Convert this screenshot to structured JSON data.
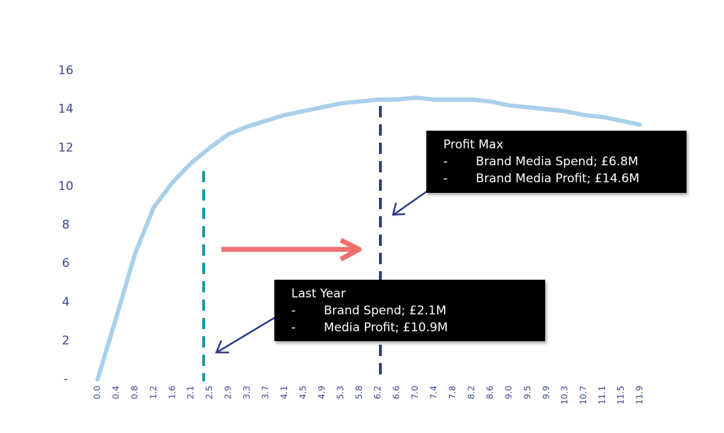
{
  "chart_data": {
    "type": "line",
    "categories": [
      "0.0",
      "0.4",
      "0.8",
      "1.2",
      "1.6",
      "2.1",
      "2.5",
      "2.9",
      "3.3",
      "3.7",
      "4.1",
      "4.5",
      "4.9",
      "5.3",
      "5.8",
      "6.2",
      "6.6",
      "7.0",
      "7.4",
      "7.8",
      "8.2",
      "8.6",
      "9.0",
      "9.5",
      "9.9",
      "10.3",
      "10.7",
      "11.1",
      "11.5",
      "11.9"
    ],
    "values": [
      0,
      3.2,
      6.5,
      8.9,
      10.2,
      11.2,
      12.0,
      12.7,
      13.1,
      13.4,
      13.7,
      13.9,
      14.1,
      14.3,
      14.4,
      14.5,
      14.5,
      14.6,
      14.5,
      14.5,
      14.5,
      14.4,
      14.2,
      14.1,
      14.0,
      13.9,
      13.7,
      13.6,
      13.4,
      13.2
    ],
    "color": "#a9d0ea",
    "ylim": [
      0,
      16
    ],
    "yticks": [
      {
        "value": 0,
        "label": "-"
      },
      2,
      4,
      6,
      8,
      10,
      12,
      14,
      16
    ],
    "annotations": [
      {
        "title": "Profit Max",
        "lines": [
          {
            "bullet": "-",
            "text": "Brand Media Spend; £6.8M"
          },
          {
            "bullet": "-",
            "text": "Brand Media Profit; £14.6M"
          }
        ]
      },
      {
        "title": "Last Year",
        "lines": [
          {
            "bullet": "-",
            "text": "Brand Spend; £2.1M"
          },
          {
            "bullet": "-",
            "text": "Media Profit; £10.9M"
          }
        ]
      }
    ]
  }
}
